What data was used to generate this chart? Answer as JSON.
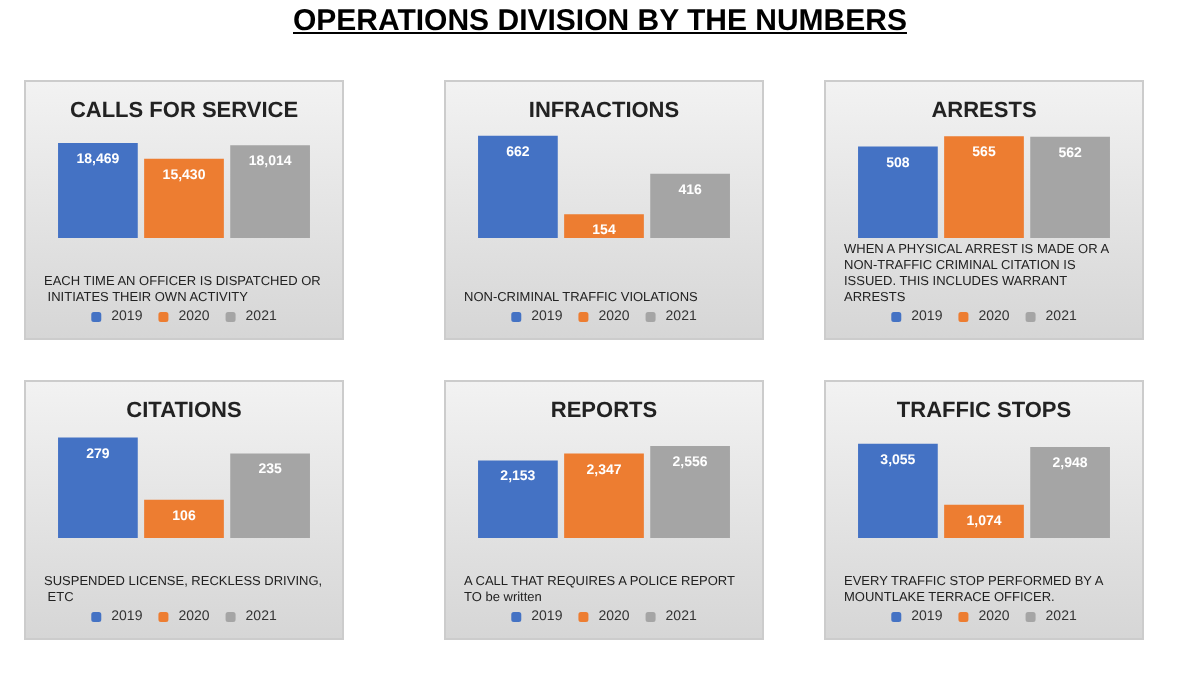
{
  "chart_data": [
    {
      "type": "other",
      "title": "OPERATIONS DIVISION BY THE NUMBERS"
    },
    {
      "type": "bar",
      "title": "CALLS FOR SERVICE",
      "categories": [
        null
      ],
      "legend": "bottom",
      "annotations": [
        "EACH TIME AN OFFICER IS DISPATCHED OR INITIATES THEIR OWN ACTIVITY"
      ],
      "series": [
        {
          "name": "2019",
          "color": "#4472c4",
          "values": [
            18469
          ],
          "value_labels": [
            "18,469"
          ]
        },
        {
          "name": "2020",
          "color": "#ed7d31",
          "values": [
            15430
          ],
          "value_labels": [
            "15,430"
          ]
        },
        {
          "name": "2021",
          "color": "#a5a5a5",
          "values": [
            18014
          ],
          "value_labels": [
            "18,014"
          ]
        }
      ]
    },
    {
      "type": "bar",
      "title": "INFRACTIONS",
      "categories": [
        null
      ],
      "legend": "bottom",
      "annotations": [
        "NON-CRIMINAL TRAFFIC VIOLATIONS"
      ],
      "series": [
        {
          "name": "2019",
          "color": "#4472c4",
          "values": [
            662
          ],
          "value_labels": [
            "662"
          ]
        },
        {
          "name": "2020",
          "color": "#ed7d31",
          "values": [
            154
          ],
          "value_labels": [
            "154"
          ]
        },
        {
          "name": "2021",
          "color": "#a5a5a5",
          "values": [
            416
          ],
          "value_labels": [
            "416"
          ]
        }
      ]
    },
    {
      "type": "bar",
      "title": "ARRESTS",
      "categories": [
        null
      ],
      "legend": "bottom",
      "annotations": [
        "WHEN A PHYSICAL ARREST IS MADE OR A NON-TRAFFIC CRIMINAL CITATION IS ISSUED. THIS INCLUDES WARRANT ARRESTS"
      ],
      "series": [
        {
          "name": "2019",
          "color": "#4472c4",
          "values": [
            508
          ],
          "value_labels": [
            "508"
          ]
        },
        {
          "name": "2020",
          "color": "#ed7d31",
          "values": [
            565
          ],
          "value_labels": [
            "565"
          ]
        },
        {
          "name": "2021",
          "color": "#a5a5a5",
          "values": [
            562
          ],
          "value_labels": [
            "562"
          ]
        }
      ]
    },
    {
      "type": "bar",
      "title": "CITATIONS",
      "categories": [
        null
      ],
      "legend": "bottom",
      "annotations": [
        "SUSPENDED LICENSE, RECKLESS DRIVING, ETC"
      ],
      "series": [
        {
          "name": "2019",
          "color": "#4472c4",
          "values": [
            279
          ],
          "value_labels": [
            "279"
          ]
        },
        {
          "name": "2020",
          "color": "#ed7d31",
          "values": [
            106
          ],
          "value_labels": [
            "106"
          ]
        },
        {
          "name": "2021",
          "color": "#a5a5a5",
          "values": [
            235
          ],
          "value_labels": [
            "235"
          ]
        }
      ]
    },
    {
      "type": "bar",
      "title": "REPORTS",
      "categories": [
        null
      ],
      "legend": "bottom",
      "annotations": [
        "A CALL THAT REQUIRES A POLICE REPORT TO be written"
      ],
      "series": [
        {
          "name": "2019",
          "color": "#4472c4",
          "values": [
            2153
          ],
          "value_labels": [
            "2,153"
          ]
        },
        {
          "name": "2020",
          "color": "#ed7d31",
          "values": [
            2347
          ],
          "value_labels": [
            "2,347"
          ]
        },
        {
          "name": "2021",
          "color": "#a5a5a5",
          "values": [
            2556
          ],
          "value_labels": [
            "2,556"
          ]
        }
      ]
    },
    {
      "type": "bar",
      "title": "TRAFFIC STOPS",
      "categories": [
        null
      ],
      "legend": "bottom",
      "annotations": [
        "EVERY TRAFFIC STOP PERFORMED BY A MOUNTLAKE TERRACE OFFICER."
      ],
      "series": [
        {
          "name": "2019",
          "color": "#4472c4",
          "values": [
            3055
          ],
          "value_labels": [
            "3,055"
          ]
        },
        {
          "name": "2020",
          "color": "#ed7d31",
          "values": [
            1074
          ],
          "value_labels": [
            "1,074"
          ]
        },
        {
          "name": "2021",
          "color": "#a5a5a5",
          "values": [
            2948
          ],
          "value_labels": [
            "2,948"
          ]
        }
      ]
    }
  ]
}
